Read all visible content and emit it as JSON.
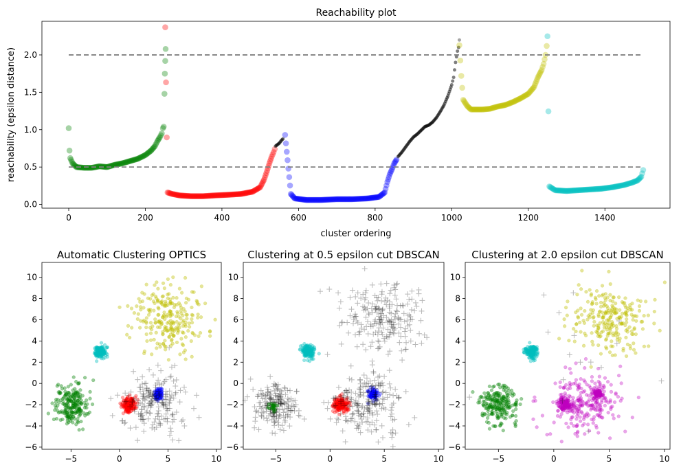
{
  "figure": {
    "colors": {
      "green": "#008000",
      "red": "#ff0000",
      "blue": "#0000ff",
      "black": "#000000",
      "yellow": "#bfbf00",
      "cyan": "#00bfbf",
      "magenta": "#bf00bf",
      "dashed": "#808080"
    }
  },
  "chart_data": [
    {
      "type": "scatter",
      "title": "Reachability plot",
      "xlabel": "cluster ordering",
      "ylabel": "reachability (epsilon distance)",
      "xlim": [
        -70,
        1570
      ],
      "ylim": [
        -0.05,
        2.45
      ],
      "xticks": [
        "0",
        "200",
        "400",
        "600",
        "800",
        "1000",
        "1200",
        "1400"
      ],
      "yticks": [
        "0.0",
        "0.5",
        "1.0",
        "1.5",
        "2.0"
      ],
      "reference_lines": [
        0.5,
        2.0
      ],
      "series": [
        {
          "color": "green",
          "points": [
            [
              0,
              1.02
            ],
            [
              2,
              0.72
            ],
            [
              4,
              0.62
            ],
            [
              10,
              0.55
            ],
            [
              20,
              0.5
            ],
            [
              40,
              0.49
            ],
            [
              60,
              0.49
            ],
            [
              80,
              0.51
            ],
            [
              100,
              0.5
            ],
            [
              120,
              0.53
            ],
            [
              140,
              0.55
            ],
            [
              160,
              0.58
            ],
            [
              180,
              0.61
            ],
            [
              200,
              0.66
            ],
            [
              215,
              0.72
            ],
            [
              225,
              0.78
            ],
            [
              232,
              0.85
            ],
            [
              238,
              0.9
            ],
            [
              243,
              0.95
            ],
            [
              246,
              1.02
            ],
            [
              248,
              1.04
            ],
            [
              250,
              1.48
            ],
            [
              251,
              1.75
            ],
            [
              252,
              1.92
            ],
            [
              253,
              2.08
            ]
          ]
        },
        {
          "color": "red",
          "points": [
            [
              252,
              2.37
            ],
            [
              258,
              0.16
            ],
            [
              270,
              0.14
            ],
            [
              290,
              0.12
            ],
            [
              320,
              0.11
            ],
            [
              350,
              0.11
            ],
            [
              380,
              0.12
            ],
            [
              420,
              0.13
            ],
            [
              450,
              0.14
            ],
            [
              480,
              0.17
            ],
            [
              500,
              0.23
            ],
            [
              510,
              0.33
            ],
            [
              518,
              0.45
            ],
            [
              524,
              0.55
            ],
            [
              530,
              0.64
            ],
            [
              535,
              0.7
            ],
            [
              538,
              0.74
            ]
          ]
        },
        {
          "color": "black",
          "points": [
            [
              540,
              0.78
            ],
            [
              550,
              0.82
            ],
            [
              556,
              0.86
            ],
            [
              560,
              0.88
            ]
          ]
        },
        {
          "color": "blue",
          "points": [
            [
              565,
              0.93
            ],
            [
              580,
              0.14
            ],
            [
              590,
              0.08
            ],
            [
              620,
              0.06
            ],
            [
              660,
              0.06
            ],
            [
              700,
              0.07
            ],
            [
              740,
              0.07
            ],
            [
              780,
              0.08
            ],
            [
              810,
              0.1
            ],
            [
              825,
              0.16
            ],
            [
              832,
              0.3
            ],
            [
              838,
              0.4
            ],
            [
              844,
              0.47
            ],
            [
              850,
              0.55
            ],
            [
              856,
              0.6
            ]
          ]
        },
        {
          "color": "black",
          "points": [
            [
              860,
              0.64
            ],
            [
              870,
              0.7
            ],
            [
              880,
              0.77
            ],
            [
              890,
              0.84
            ],
            [
              900,
              0.9
            ],
            [
              910,
              0.94
            ],
            [
              920,
              0.99
            ],
            [
              930,
              1.04
            ],
            [
              940,
              1.06
            ],
            [
              950,
              1.1
            ],
            [
              960,
              1.16
            ],
            [
              970,
              1.24
            ],
            [
              980,
              1.33
            ],
            [
              990,
              1.45
            ],
            [
              1000,
              1.6
            ],
            [
              1005,
              1.7
            ],
            [
              1010,
              1.9
            ],
            [
              1015,
              2.05
            ],
            [
              1018,
              2.1
            ],
            [
              1020,
              2.2
            ]
          ]
        },
        {
          "color": "yellow",
          "points": [
            [
              1020,
              2.13
            ],
            [
              1025,
              1.72
            ],
            [
              1030,
              1.4
            ],
            [
              1040,
              1.32
            ],
            [
              1050,
              1.27
            ],
            [
              1080,
              1.27
            ],
            [
              1100,
              1.28
            ],
            [
              1120,
              1.31
            ],
            [
              1140,
              1.33
            ],
            [
              1160,
              1.37
            ],
            [
              1180,
              1.42
            ],
            [
              1200,
              1.48
            ],
            [
              1215,
              1.57
            ],
            [
              1225,
              1.7
            ],
            [
              1235,
              1.8
            ],
            [
              1240,
              1.88
            ],
            [
              1245,
              2.0
            ],
            [
              1248,
              2.12
            ]
          ]
        },
        {
          "color": "cyan",
          "points": [
            [
              1250,
              2.25
            ],
            [
              1255,
              0.24
            ],
            [
              1270,
              0.19
            ],
            [
              1300,
              0.18
            ],
            [
              1330,
              0.19
            ],
            [
              1360,
              0.2
            ],
            [
              1390,
              0.21
            ],
            [
              1420,
              0.23
            ],
            [
              1450,
              0.26
            ],
            [
              1470,
              0.29
            ],
            [
              1485,
              0.32
            ],
            [
              1495,
              0.37
            ],
            [
              1500,
              0.46
            ]
          ]
        }
      ]
    },
    {
      "type": "scatter",
      "title": "Automatic Clustering OPTICS",
      "xlim": [
        -8,
        10.5
      ],
      "ylim": [
        -6.2,
        11.4
      ],
      "xticks": [
        "−5",
        "0",
        "5",
        "10"
      ],
      "yticks": [
        "−6",
        "−4",
        "−2",
        "0",
        "2",
        "4",
        "6",
        "8",
        "10"
      ],
      "clusters": [
        {
          "color": "green",
          "center": [
            -5,
            -2
          ],
          "spread": [
            0.85,
            0.95
          ],
          "count": 220,
          "alpha": 0.4,
          "marker": "dot"
        },
        {
          "color": "red",
          "center": [
            1,
            -2
          ],
          "spread": [
            0.35,
            0.35
          ],
          "count": 180,
          "alpha": 0.35,
          "marker": "dot"
        },
        {
          "color": "blue",
          "center": [
            4,
            -1
          ],
          "spread": [
            0.2,
            0.25
          ],
          "count": 90,
          "alpha": 0.35,
          "marker": "dot"
        },
        {
          "color": "cyan",
          "center": [
            -2,
            3
          ],
          "spread": [
            0.3,
            0.3
          ],
          "count": 150,
          "alpha": 0.4,
          "marker": "dot"
        },
        {
          "color": "yellow",
          "center": [
            5,
            6
          ],
          "spread": [
            1.8,
            1.6
          ],
          "count": 250,
          "alpha": 0.4,
          "marker": "dot"
        },
        {
          "color": "black",
          "center": [
            3.5,
            -1.8
          ],
          "spread": [
            1.7,
            1.5
          ],
          "count": 200,
          "alpha": 0.28,
          "marker": "plus"
        }
      ]
    },
    {
      "type": "scatter",
      "title": "Clustering at 0.5 epsilon cut DBSCAN",
      "xlim": [
        -8,
        10.5
      ],
      "ylim": [
        -6.2,
        11.4
      ],
      "xticks": [
        "−5",
        "0",
        "5",
        "10"
      ],
      "yticks": [
        "−6",
        "−4",
        "−2",
        "0",
        "2",
        "4",
        "6",
        "8",
        "10"
      ],
      "clusters": [
        {
          "color": "black",
          "center": [
            -5,
            -2
          ],
          "spread": [
            0.95,
            1.0
          ],
          "count": 200,
          "alpha": 0.28,
          "marker": "plus"
        },
        {
          "color": "green",
          "center": [
            -5.3,
            -2.2
          ],
          "spread": [
            0.18,
            0.2
          ],
          "count": 20,
          "alpha": 0.5,
          "marker": "dot"
        },
        {
          "color": "red",
          "center": [
            1,
            -2
          ],
          "spread": [
            0.35,
            0.35
          ],
          "count": 180,
          "alpha": 0.35,
          "marker": "dot"
        },
        {
          "color": "blue",
          "center": [
            4,
            -1
          ],
          "spread": [
            0.2,
            0.25
          ],
          "count": 90,
          "alpha": 0.35,
          "marker": "dot"
        },
        {
          "color": "cyan",
          "center": [
            -2,
            3
          ],
          "spread": [
            0.3,
            0.3
          ],
          "count": 150,
          "alpha": 0.4,
          "marker": "dot"
        },
        {
          "color": "black",
          "center": [
            5,
            6
          ],
          "spread": [
            1.8,
            1.6
          ],
          "count": 220,
          "alpha": 0.28,
          "marker": "plus"
        },
        {
          "color": "black",
          "center": [
            3.5,
            -1.8
          ],
          "spread": [
            1.7,
            1.5
          ],
          "count": 220,
          "alpha": 0.28,
          "marker": "plus"
        }
      ]
    },
    {
      "type": "scatter",
      "title": "Clustering at 2.0 epsilon cut DBSCAN",
      "xlim": [
        -8,
        10.5
      ],
      "ylim": [
        -6.2,
        11.4
      ],
      "xticks": [
        "−5",
        "0",
        "5",
        "10"
      ],
      "yticks": [
        "−6",
        "−4",
        "−2",
        "0",
        "2",
        "4",
        "6",
        "8",
        "10"
      ],
      "clusters": [
        {
          "color": "green",
          "center": [
            -5,
            -2
          ],
          "spread": [
            0.85,
            0.95
          ],
          "count": 220,
          "alpha": 0.4,
          "marker": "dot"
        },
        {
          "color": "magenta",
          "center": [
            3,
            -1.8
          ],
          "spread": [
            1.7,
            1.5
          ],
          "count": 260,
          "alpha": 0.35,
          "marker": "dot"
        },
        {
          "color": "magenta",
          "center": [
            1,
            -2
          ],
          "spread": [
            0.3,
            0.3
          ],
          "count": 140,
          "alpha": 0.35,
          "marker": "dot"
        },
        {
          "color": "magenta",
          "center": [
            4,
            -1
          ],
          "spread": [
            0.2,
            0.2
          ],
          "count": 80,
          "alpha": 0.35,
          "marker": "dot"
        },
        {
          "color": "cyan",
          "center": [
            -2,
            3
          ],
          "spread": [
            0.3,
            0.3
          ],
          "count": 150,
          "alpha": 0.4,
          "marker": "dot"
        },
        {
          "color": "yellow",
          "center": [
            5,
            6
          ],
          "spread": [
            1.8,
            1.6
          ],
          "count": 250,
          "alpha": 0.4,
          "marker": "dot"
        },
        {
          "color": "black",
          "center": [
            4,
            3
          ],
          "spread": [
            4.0,
            4.0
          ],
          "count": 20,
          "alpha": 0.28,
          "marker": "plus"
        }
      ]
    }
  ]
}
